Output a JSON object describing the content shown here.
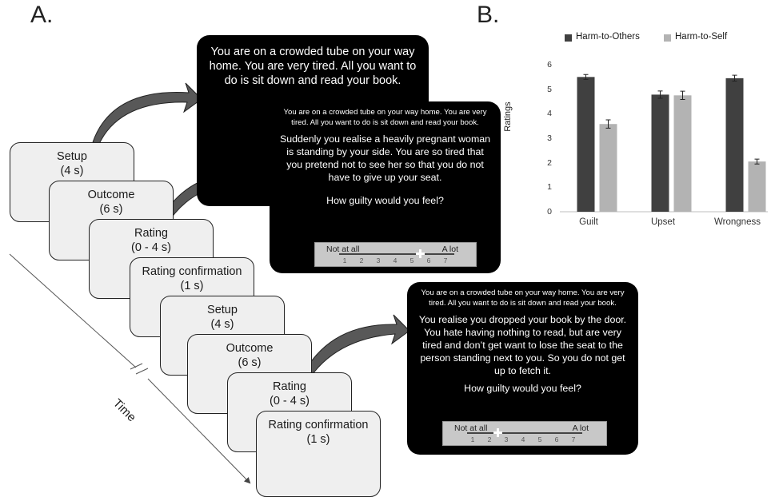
{
  "panel_a_label": "A.",
  "panel_b_label": "B.",
  "time_label": "Time",
  "timeline_cards": [
    {
      "title": "Setup",
      "duration": "(4 s)"
    },
    {
      "title": "Outcome",
      "duration": "(6 s)"
    },
    {
      "title": "Rating",
      "duration": "(0 - 4 s)"
    },
    {
      "title": "Rating confirmation",
      "duration": "(1 s)"
    },
    {
      "title": "Setup",
      "duration": "(4 s)"
    },
    {
      "title": "Outcome",
      "duration": "(6 s)"
    },
    {
      "title": "Rating",
      "duration": "(0 - 4 s)"
    },
    {
      "title": "Rating confirmation",
      "duration": "(1 s)"
    }
  ],
  "screen1": {
    "setup_text": "You are on a crowded tube on your way home. You are very tired. All you want to do is sit down and read your book."
  },
  "screen2": {
    "setup_text": "You are on a crowded tube on your way home. You are very tired. All you want to do is sit down and read your book.",
    "outcome_text": "Suddenly you realise a heavily pregnant woman is standing by your side. You are so tired that you pretend not to see her so that you do not have to give up your seat.",
    "question": "How guilty would you feel?",
    "scale_low": "Not at all",
    "scale_high": "A lot",
    "scale_ticks": [
      "1",
      "2",
      "3",
      "4",
      "5",
      "6",
      "7"
    ],
    "cursor_value": 5.5
  },
  "screen3": {
    "setup_text": "You are on a crowded tube on your way home. You are very tired. All you want to do is sit down and read your book.",
    "outcome_text": "You realise you dropped your book by the door. You hate having nothing to read, but are very tired and don’t get want to lose the seat to the person standing next to you. So you do not get up to fetch it.",
    "question": "How guilty would you feel?",
    "scale_low": "Not at all",
    "scale_high": "A lot",
    "scale_ticks": [
      "1",
      "2",
      "3",
      "4",
      "5",
      "6",
      "7"
    ],
    "cursor_value": 2.5
  },
  "chart_data": {
    "type": "bar",
    "title": "",
    "xlabel": "",
    "ylabel": "Ratings",
    "ylim": [
      0,
      6
    ],
    "yticks": [
      "0",
      "1",
      "2",
      "3",
      "4",
      "5",
      "6"
    ],
    "categories": [
      "Guilt",
      "Upset",
      "Wrongness"
    ],
    "series": [
      {
        "name": "Harm-to-Others",
        "color": "#404040",
        "values": [
          5.5,
          4.78,
          5.45
        ],
        "errors": [
          0.1,
          0.15,
          0.12
        ]
      },
      {
        "name": "Harm-to-Self",
        "color": "#b3b3b3",
        "values": [
          3.58,
          4.75,
          2.05
        ],
        "errors": [
          0.17,
          0.17,
          0.1
        ]
      }
    ],
    "grid": false,
    "legend": "top"
  }
}
